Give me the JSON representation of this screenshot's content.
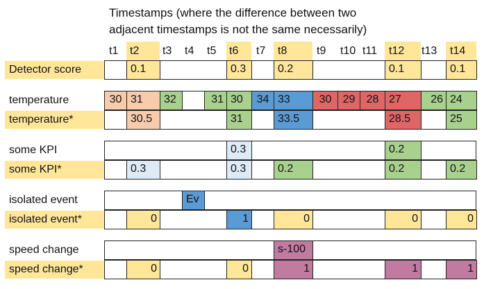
{
  "title_lines": [
    "Timestamps (where the difference between two",
    "adjacent timestamps is not the same necessarily)"
  ],
  "colors": {
    "highlight_yellow": "#ffe699",
    "orange": "#f8cbad",
    "green": "#a9d18e",
    "blue": "#5b9bd5",
    "light_blue": "#deebf7",
    "red": "#e06666",
    "purple": "#c27ba0"
  },
  "timestamps": [
    "t1",
    "t2",
    "t3",
    "t4",
    "t5",
    "t6",
    "t7",
    "t8",
    "t9",
    "t10",
    "t11",
    "t12",
    "t13",
    "t14"
  ],
  "highlighted_timestamps": [
    "t2",
    "t6",
    "t8",
    "t12",
    "t14"
  ],
  "rows": [
    {
      "label": "Detector score",
      "highlight": true,
      "cells": [
        {
          "span": [
            2,
            2
          ],
          "value": "0.1",
          "color": "highlight_yellow",
          "align": "left"
        },
        {
          "span": [
            6,
            6
          ],
          "value": "0.3",
          "color": "highlight_yellow",
          "align": "left"
        },
        {
          "span": [
            8,
            8
          ],
          "value": "0.2",
          "color": "highlight_yellow",
          "align": "left"
        },
        {
          "span": [
            12,
            12
          ],
          "value": "0.1",
          "color": "highlight_yellow",
          "align": "left"
        },
        {
          "span": [
            14,
            14
          ],
          "value": "0.1",
          "color": "highlight_yellow",
          "align": "left"
        }
      ]
    },
    {
      "label": "temperature",
      "highlight": false,
      "cells": [
        {
          "span": [
            1,
            1
          ],
          "value": "30",
          "color": "orange",
          "align": "center"
        },
        {
          "span": [
            2,
            2
          ],
          "value": "31",
          "color": "orange",
          "align": "left"
        },
        {
          "span": [
            3,
            3
          ],
          "value": "32",
          "color": "green",
          "align": "left"
        },
        {
          "span": [
            4,
            4
          ],
          "value": "",
          "color": "",
          "align": "left"
        },
        {
          "span": [
            5,
            5
          ],
          "value": "31",
          "color": "green",
          "align": "right"
        },
        {
          "span": [
            6,
            6
          ],
          "value": "30",
          "color": "green",
          "align": "left"
        },
        {
          "span": [
            7,
            7
          ],
          "value": "34",
          "color": "blue",
          "align": "center"
        },
        {
          "span": [
            8,
            8
          ],
          "value": "33",
          "color": "blue",
          "align": "left"
        },
        {
          "span": [
            9,
            9
          ],
          "value": "30",
          "color": "red",
          "align": "center"
        },
        {
          "span": [
            10,
            10
          ],
          "value": "29",
          "color": "red",
          "align": "center"
        },
        {
          "span": [
            11,
            11
          ],
          "value": "28",
          "color": "red",
          "align": "center"
        },
        {
          "span": [
            12,
            12
          ],
          "value": "27",
          "color": "red",
          "align": "left"
        },
        {
          "span": [
            13,
            13
          ],
          "value": "26",
          "color": "green",
          "align": "right"
        },
        {
          "span": [
            14,
            14
          ],
          "value": "24",
          "color": "green",
          "align": "left"
        }
      ]
    },
    {
      "label": "temperature*",
      "highlight": true,
      "cells": [
        {
          "span": [
            2,
            2
          ],
          "value": "30.5",
          "color": "orange",
          "align": "left"
        },
        {
          "span": [
            6,
            6
          ],
          "value": "31",
          "color": "green",
          "align": "left"
        },
        {
          "span": [
            8,
            8
          ],
          "value": "33.5",
          "color": "blue",
          "align": "left"
        },
        {
          "span": [
            12,
            12
          ],
          "value": "28.5",
          "color": "red",
          "align": "left"
        },
        {
          "span": [
            14,
            14
          ],
          "value": "25",
          "color": "green",
          "align": "left"
        }
      ]
    },
    {
      "label": "some KPI",
      "highlight": false,
      "cells": [
        {
          "span": [
            6,
            6
          ],
          "value": "0.3",
          "color": "light_blue",
          "align": "left"
        },
        {
          "span": [
            12,
            12
          ],
          "value": "0.2",
          "color": "green",
          "align": "left"
        }
      ]
    },
    {
      "label": "some KPI*",
      "highlight": true,
      "cells": [
        {
          "span": [
            2,
            2
          ],
          "value": "0.3",
          "color": "light_blue",
          "align": "left"
        },
        {
          "span": [
            6,
            6
          ],
          "value": "0.3",
          "color": "light_blue",
          "align": "left"
        },
        {
          "span": [
            8,
            8
          ],
          "value": "0.2",
          "color": "green",
          "align": "left"
        },
        {
          "span": [
            12,
            12
          ],
          "value": "0.2",
          "color": "green",
          "align": "left"
        },
        {
          "span": [
            14,
            14
          ],
          "value": "0.2",
          "color": "green",
          "align": "left"
        }
      ]
    },
    {
      "label": "isolated event",
      "highlight": false,
      "cells": [
        {
          "span": [
            4,
            4
          ],
          "value": "Ev",
          "color": "blue",
          "align": "left"
        }
      ]
    },
    {
      "label": "isolated event*",
      "highlight": true,
      "cells": [
        {
          "span": [
            2,
            2
          ],
          "value": "0",
          "color": "highlight_yellow",
          "align": "right"
        },
        {
          "span": [
            6,
            6
          ],
          "value": "1",
          "color": "blue",
          "align": "right"
        },
        {
          "span": [
            8,
            8
          ],
          "value": "0",
          "color": "highlight_yellow",
          "align": "right"
        },
        {
          "span": [
            12,
            12
          ],
          "value": "0",
          "color": "highlight_yellow",
          "align": "right"
        },
        {
          "span": [
            14,
            14
          ],
          "value": "0",
          "color": "highlight_yellow",
          "align": "right"
        }
      ]
    },
    {
      "label": "speed change",
      "highlight": false,
      "cells": [
        {
          "span": [
            8,
            8
          ],
          "value": "s-100",
          "color": "purple",
          "align": "left"
        }
      ]
    },
    {
      "label": "speed change*",
      "highlight": true,
      "cells": [
        {
          "span": [
            2,
            2
          ],
          "value": "0",
          "color": "highlight_yellow",
          "align": "right"
        },
        {
          "span": [
            6,
            6
          ],
          "value": "0",
          "color": "highlight_yellow",
          "align": "right"
        },
        {
          "span": [
            8,
            8
          ],
          "value": "1",
          "color": "purple",
          "align": "right"
        },
        {
          "span": [
            12,
            12
          ],
          "value": "1",
          "color": "purple",
          "align": "right"
        },
        {
          "span": [
            14,
            14
          ],
          "value": "1",
          "color": "purple",
          "align": "right"
        }
      ]
    }
  ]
}
